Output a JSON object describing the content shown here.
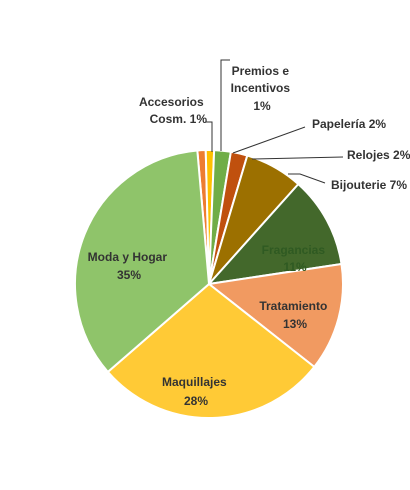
{
  "chart_data": {
    "type": "pie",
    "title": "",
    "start_angle_deg": -5,
    "direction": "clockwise",
    "slices": [
      {
        "name": "Accesorios Cosm.",
        "value": 1,
        "label": "1%",
        "color": "#ED7D31"
      },
      {
        "name": "Premios e Incentivos",
        "value": 1,
        "label": "1%",
        "color": "#FFC000"
      },
      {
        "name": "Papelería",
        "value": 2,
        "label": "2%",
        "color": "#70AD47"
      },
      {
        "name": "Relojes",
        "value": 2,
        "label": "2%",
        "color": "#C0500E"
      },
      {
        "name": "Bijouterie",
        "value": 7,
        "label": "7%",
        "color": "#9C7000"
      },
      {
        "name": "Fragancias",
        "value": 11,
        "label": "11%",
        "color": "#43682B"
      },
      {
        "name": "Tratamiento",
        "value": 13,
        "label": "13%",
        "color": "#F19A61"
      },
      {
        "name": "Maquillajes",
        "value": 28,
        "label": "28%",
        "color": "#FFCA36"
      },
      {
        "name": "Moda y Hogar",
        "value": 35,
        "label": "35%",
        "color": "#8FC46A"
      }
    ],
    "labels_text": {
      "accesorios": [
        "Accesorios",
        "Cosm. 1%"
      ],
      "premios": [
        "Premios e",
        "Incentivos",
        "1%"
      ],
      "papeleria": "Papelería 2%",
      "relojes": "Relojes 2%",
      "bijouterie": "Bijouterie 7%",
      "fragancias": [
        "Fragancias",
        "11%"
      ],
      "tratamiento": [
        "Tratamiento",
        "13%"
      ],
      "maquillajes": [
        "Maquillajes",
        "28%"
      ],
      "moda": [
        "Moda y Hogar",
        "35%"
      ]
    }
  }
}
